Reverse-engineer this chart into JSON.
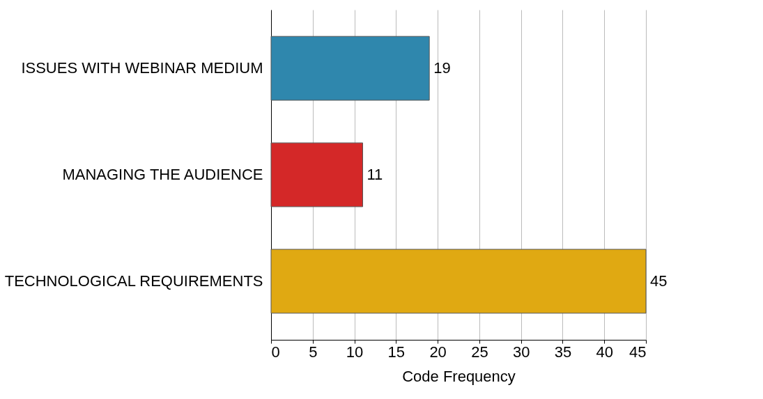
{
  "chart_data": {
    "type": "bar",
    "orientation": "horizontal",
    "xlabel": "Code Frequency",
    "categories": [
      "ISSUES WITH WEBINAR MEDIUM",
      "MANAGING THE AUDIENCE",
      "TECHNOLOGICAL REQUIREMENTS"
    ],
    "values": [
      19,
      11,
      45
    ],
    "colors": [
      "#2f87ad",
      "#d42828",
      "#e0a912"
    ],
    "xlim": [
      0,
      45
    ],
    "xticks": [
      0,
      5,
      10,
      15,
      20,
      25,
      30,
      35,
      40,
      45
    ],
    "grid": "x",
    "data_labels": true,
    "legend": false
  }
}
